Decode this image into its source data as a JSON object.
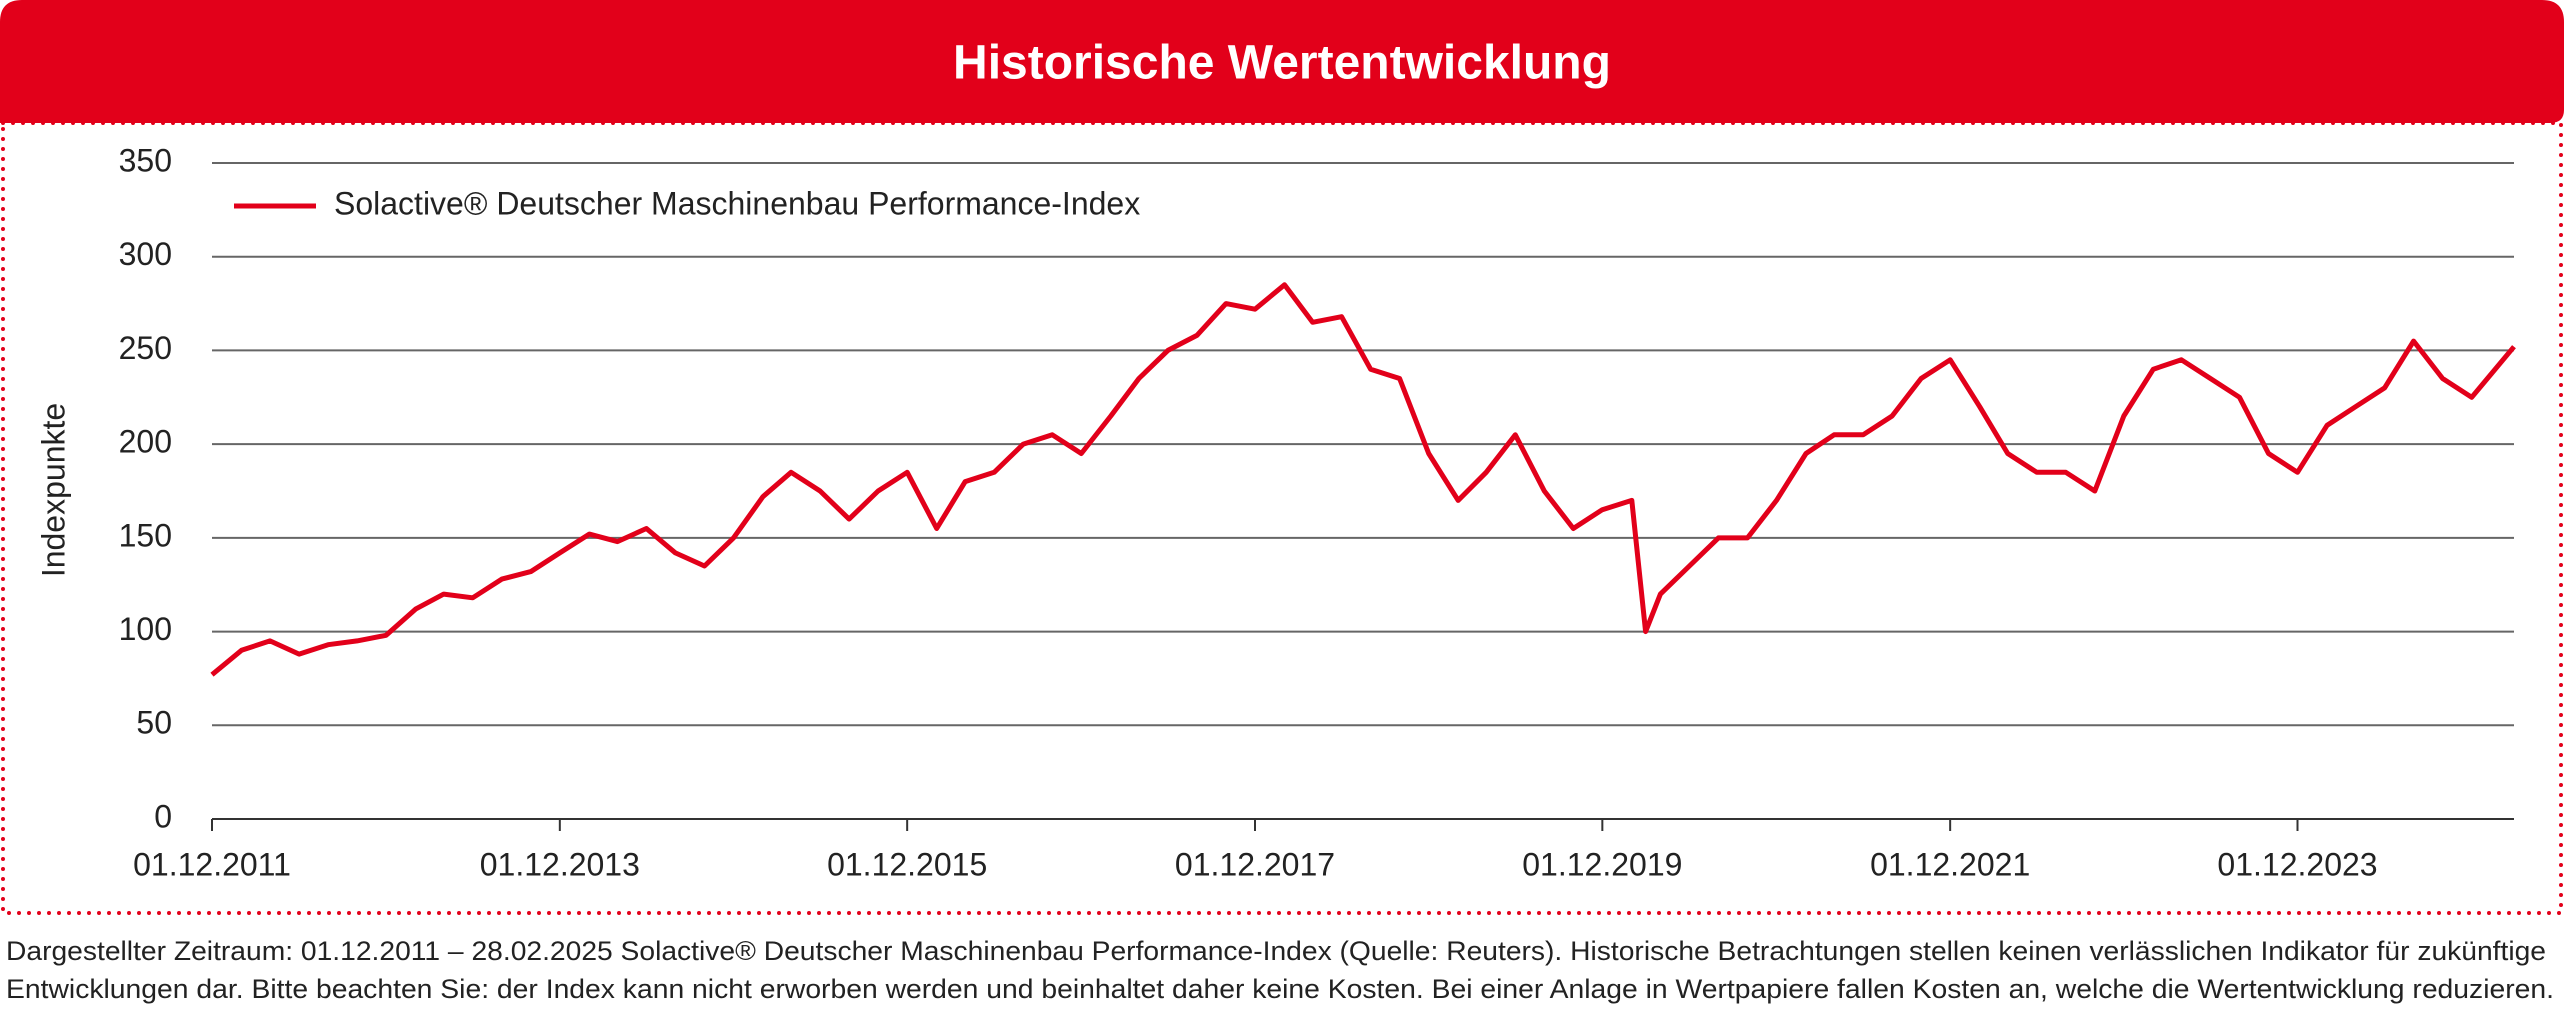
{
  "chart_data": {
    "type": "line",
    "title": "Historische Wertentwicklung",
    "ylabel": "Indexpunkte",
    "x": [
      "01.12.2011",
      "01.02.2012",
      "01.04.2012",
      "01.06.2012",
      "01.08.2012",
      "01.10.2012",
      "01.12.2012",
      "01.02.2013",
      "01.04.2013",
      "01.06.2013",
      "01.08.2013",
      "01.10.2013",
      "01.12.2013",
      "01.02.2014",
      "01.04.2014",
      "01.06.2014",
      "01.08.2014",
      "01.10.2014",
      "01.12.2014",
      "01.02.2015",
      "01.04.2015",
      "01.06.2015",
      "01.08.2015",
      "01.10.2015",
      "01.12.2015",
      "01.02.2016",
      "01.04.2016",
      "01.06.2016",
      "01.08.2016",
      "01.10.2016",
      "01.12.2016",
      "01.02.2017",
      "01.04.2017",
      "01.06.2017",
      "01.08.2017",
      "01.10.2017",
      "01.12.2017",
      "01.02.2018",
      "01.04.2018",
      "01.06.2018",
      "01.08.2018",
      "01.10.2018",
      "01.12.2018",
      "01.02.2019",
      "01.04.2019",
      "01.06.2019",
      "01.08.2019",
      "01.10.2019",
      "01.12.2019",
      "01.02.2020",
      "01.03.2020",
      "01.04.2020",
      "01.06.2020",
      "01.08.2020",
      "01.10.2020",
      "01.12.2020",
      "01.02.2021",
      "01.04.2021",
      "01.06.2021",
      "01.08.2021",
      "01.10.2021",
      "01.12.2021",
      "01.02.2022",
      "01.04.2022",
      "01.06.2022",
      "01.08.2022",
      "01.10.2022",
      "01.12.2022",
      "01.02.2023",
      "01.04.2023",
      "01.06.2023",
      "01.08.2023",
      "01.10.2023",
      "01.12.2023",
      "01.02.2024",
      "01.04.2024",
      "01.06.2024",
      "01.08.2024",
      "01.10.2024",
      "01.12.2024",
      "28.02.2025"
    ],
    "series": [
      {
        "name": "Solactive® Deutscher Maschinenbau Performance-Index",
        "color": "#e2001a",
        "values": [
          77,
          90,
          95,
          88,
          93,
          95,
          98,
          112,
          120,
          118,
          128,
          132,
          142,
          152,
          148,
          155,
          142,
          135,
          150,
          172,
          185,
          175,
          160,
          175,
          185,
          155,
          180,
          185,
          200,
          205,
          195,
          215,
          235,
          250,
          258,
          275,
          272,
          285,
          265,
          268,
          240,
          235,
          195,
          170,
          185,
          205,
          175,
          155,
          165,
          170,
          100,
          120,
          135,
          150,
          150,
          170,
          195,
          205,
          205,
          215,
          235,
          245,
          220,
          195,
          185,
          185,
          175,
          215,
          240,
          245,
          235,
          225,
          195,
          185,
          210,
          220,
          230,
          255,
          235,
          225,
          252
        ]
      }
    ],
    "xlim": [
      "01.12.2011",
      "28.02.2025"
    ],
    "xticks": [
      "01.12.2011",
      "01.12.2013",
      "01.12.2015",
      "01.12.2017",
      "01.12.2019",
      "01.12.2021",
      "01.12.2023"
    ],
    "ylim": [
      0,
      350
    ],
    "yticks": [
      0,
      50,
      100,
      150,
      200,
      250,
      300,
      350
    ],
    "grid": true,
    "legend": "top-left",
    "footnote": [
      "Dargestellter Zeitraum: 01.12.2011 – 28.02.2025 Solactive® Deutscher Maschinenbau Performance-Index (Quelle: Reuters). Historische Betrachtungen stellen keinen verlässlichen Indikator für zukünftige",
      "Entwicklungen dar. Bitte beachten Sie: der Index kann nicht erworben werden und beinhaltet daher keine Kosten. Bei einer Anlage in Wertpapiere fallen Kosten an, welche die Wertentwicklung reduzieren."
    ]
  }
}
